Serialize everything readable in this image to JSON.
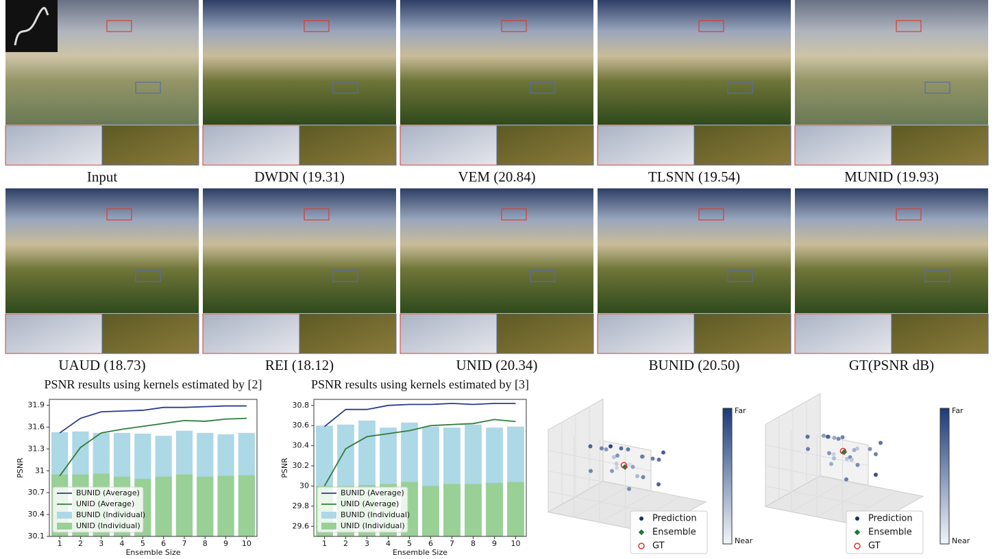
{
  "figure": {
    "panels": [
      {
        "caption": "Input"
      },
      {
        "caption": "DWDN (19.31)"
      },
      {
        "caption": "VEM (20.84)"
      },
      {
        "caption": "TLSNN (19.54)"
      },
      {
        "caption": "MUNID (19.93)"
      },
      {
        "caption": "UAUD (18.73)"
      },
      {
        "caption": "REI (18.12)"
      },
      {
        "caption": "UNID (20.34)"
      },
      {
        "caption": "BUNID (20.50)"
      },
      {
        "caption": "GT(PSNR dB)"
      }
    ]
  },
  "chart_data": [
    {
      "type": "combo",
      "title": "PSNR results using kernels estimated by [2]",
      "xlabel": "Ensemble Size",
      "ylabel": "PSNR",
      "categories": [
        "1",
        "2",
        "3",
        "4",
        "5",
        "6",
        "7",
        "8",
        "9",
        "10"
      ],
      "ylim": [
        30.1,
        31.98
      ],
      "yticks": [
        30.1,
        30.4,
        30.7,
        31.0,
        31.3,
        31.6,
        31.9
      ],
      "series": [
        {
          "name": "BUNID (Individual)",
          "kind": "bar",
          "color": "#add8e6",
          "values": [
            31.53,
            31.54,
            31.52,
            31.52,
            31.51,
            31.48,
            31.55,
            31.52,
            31.5,
            31.52
          ]
        },
        {
          "name": "UNID (Individual)",
          "kind": "bar",
          "color": "#98d096",
          "values": [
            30.95,
            30.95,
            30.96,
            30.92,
            30.89,
            30.92,
            30.95,
            30.92,
            30.93,
            30.94
          ]
        },
        {
          "name": "BUNID (Average)",
          "kind": "line",
          "color": "#2b3a8f",
          "values": [
            31.52,
            31.72,
            31.81,
            31.82,
            31.83,
            31.87,
            31.87,
            31.88,
            31.89,
            31.89
          ]
        },
        {
          "name": "UNID (Average)",
          "kind": "line",
          "color": "#2e7d3a",
          "values": [
            30.93,
            31.32,
            31.52,
            31.57,
            31.61,
            31.65,
            31.69,
            31.68,
            31.71,
            31.72
          ]
        }
      ],
      "legend_order": [
        2,
        3,
        0,
        1
      ]
    },
    {
      "type": "combo",
      "title": "PSNR results using kernels estimated by [3]",
      "xlabel": "Ensemble Size",
      "ylabel": "PSNR",
      "categories": [
        "1",
        "2",
        "3",
        "4",
        "5",
        "6",
        "7",
        "8",
        "9",
        "10"
      ],
      "ylim": [
        29.5,
        30.86
      ],
      "yticks": [
        29.6,
        29.8,
        30.0,
        30.2,
        30.4,
        30.6,
        30.8
      ],
      "series": [
        {
          "name": "BUNID (Individual)",
          "kind": "bar",
          "color": "#add8e6",
          "values": [
            30.6,
            30.61,
            30.65,
            30.58,
            30.63,
            30.59,
            30.58,
            30.61,
            30.58,
            30.59
          ]
        },
        {
          "name": "UNID (Individual)",
          "kind": "bar",
          "color": "#98d096",
          "values": [
            30.0,
            30.0,
            30.01,
            30.02,
            30.04,
            30.0,
            30.02,
            30.02,
            30.03,
            30.04
          ]
        },
        {
          "name": "BUNID (Average)",
          "kind": "line",
          "color": "#2b3a8f",
          "values": [
            30.59,
            30.76,
            30.76,
            30.8,
            30.81,
            30.81,
            30.82,
            30.81,
            30.82,
            30.82
          ]
        },
        {
          "name": "UNID (Average)",
          "kind": "line",
          "color": "#2e7d3a",
          "values": [
            30.0,
            30.37,
            30.49,
            30.52,
            30.55,
            30.6,
            30.61,
            30.62,
            30.66,
            30.64
          ]
        }
      ],
      "legend_order": [
        2,
        3,
        0,
        1
      ]
    },
    {
      "type": "scatter3d",
      "colorbar": {
        "top": "Far",
        "bottom": "Near",
        "colors": [
          "#f2f6fb",
          "#1b3a78"
        ]
      },
      "series": [
        {
          "name": "Prediction",
          "color": "#1b2f66",
          "x": [
            0.2,
            0.3,
            0.35,
            0.5,
            0.55,
            0.6,
            0.7,
            0.45,
            0.4,
            0.25,
            0.65,
            0.75,
            0.5,
            0.3,
            0.55,
            0.45,
            0.6,
            0.7,
            0.35,
            0.5,
            0.4,
            0.8,
            0.2,
            0.6
          ],
          "y": [
            0.4,
            0.3,
            0.6,
            0.5,
            0.7,
            0.4,
            0.6,
            0.3,
            0.5,
            0.7,
            0.2,
            0.5,
            0.8,
            0.4,
            0.3,
            0.6,
            0.5,
            0.3,
            0.2,
            0.45,
            0.55,
            0.4,
            0.6,
            0.65
          ],
          "z": [
            0.6,
            0.5,
            0.7,
            0.5,
            0.8,
            0.6,
            0.7,
            0.4,
            0.45,
            0.75,
            0.5,
            0.65,
            0.85,
            0.35,
            0.3,
            0.55,
            0.4,
            0.25,
            0.55,
            0.5,
            0.6,
            0.7,
            0.4,
            0.3
          ]
        },
        {
          "name": "Ensemble",
          "color": "#1a7a3a",
          "x": [
            0.48
          ],
          "y": [
            0.5
          ],
          "z": [
            0.48
          ]
        },
        {
          "name": "GT",
          "color": "#e03030",
          "x": [
            0.47
          ],
          "y": [
            0.5
          ],
          "z": [
            0.5
          ]
        }
      ]
    },
    {
      "type": "scatter3d",
      "colorbar": {
        "top": "Far",
        "bottom": "Near",
        "colors": [
          "#f2f6fb",
          "#1b3a78"
        ]
      },
      "series": [
        {
          "name": "Prediction",
          "color": "#1b2f66",
          "x": [
            0.3,
            0.35,
            0.4,
            0.5,
            0.55,
            0.6,
            0.65,
            0.45,
            0.4,
            0.25,
            0.7,
            0.75,
            0.5,
            0.3,
            0.55,
            0.45,
            0.6,
            0.7,
            0.35,
            0.5,
            0.4,
            0.8,
            0.2,
            0.6
          ],
          "y": [
            0.5,
            0.4,
            0.6,
            0.5,
            0.7,
            0.45,
            0.6,
            0.3,
            0.5,
            0.7,
            0.3,
            0.5,
            0.8,
            0.4,
            0.35,
            0.6,
            0.55,
            0.3,
            0.25,
            0.45,
            0.55,
            0.4,
            0.6,
            0.65
          ],
          "z": [
            0.75,
            0.7,
            0.8,
            0.6,
            0.85,
            0.65,
            0.7,
            0.45,
            0.5,
            0.8,
            0.55,
            0.7,
            0.9,
            0.5,
            0.4,
            0.6,
            0.55,
            0.3,
            0.65,
            0.5,
            0.45,
            0.75,
            0.6,
            0.35
          ]
        },
        {
          "name": "Ensemble",
          "color": "#1a7a3a",
          "x": [
            0.5
          ],
          "y": [
            0.5
          ],
          "z": [
            0.6
          ]
        },
        {
          "name": "GT",
          "color": "#e03030",
          "x": [
            0.5
          ],
          "y": [
            0.52
          ],
          "z": [
            0.62
          ]
        }
      ]
    }
  ]
}
